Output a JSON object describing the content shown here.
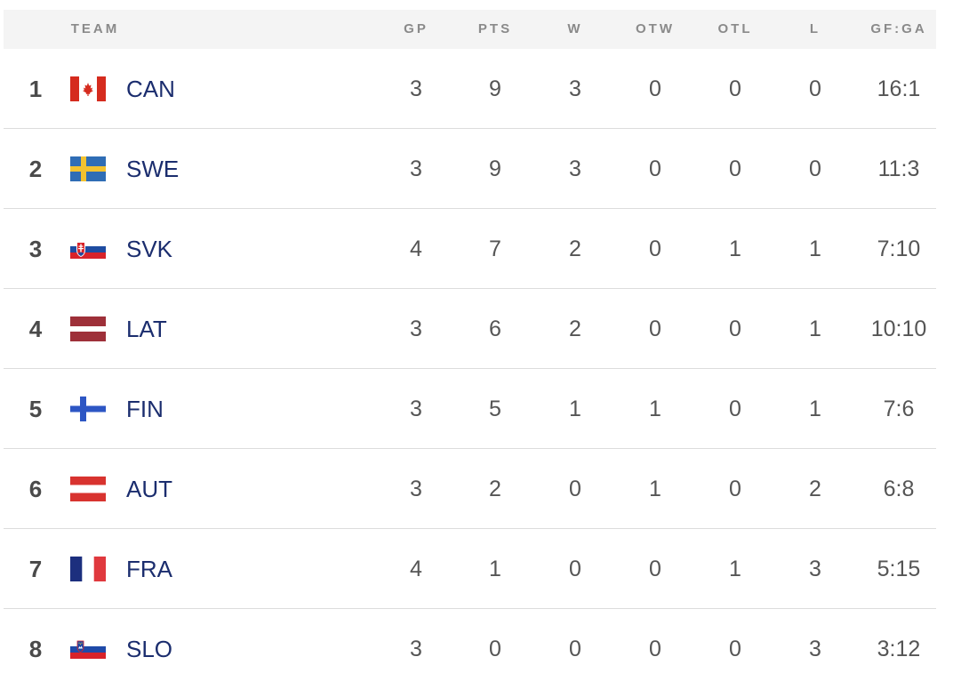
{
  "header": {
    "team": "TEAM",
    "gp": "GP",
    "pts": "PTS",
    "w": "W",
    "otw": "OTW",
    "otl": "OTL",
    "l": "L",
    "gfga": "GF:GA"
  },
  "rows": [
    {
      "rank": "1",
      "team": "CAN",
      "flag": "canada-flag",
      "gp": "3",
      "pts": "9",
      "w": "3",
      "otw": "0",
      "otl": "0",
      "l": "0",
      "gfga": "16:1"
    },
    {
      "rank": "2",
      "team": "SWE",
      "flag": "sweden-flag",
      "gp": "3",
      "pts": "9",
      "w": "3",
      "otw": "0",
      "otl": "0",
      "l": "0",
      "gfga": "11:3"
    },
    {
      "rank": "3",
      "team": "SVK",
      "flag": "slovakia-flag",
      "gp": "4",
      "pts": "7",
      "w": "2",
      "otw": "0",
      "otl": "1",
      "l": "1",
      "gfga": "7:10"
    },
    {
      "rank": "4",
      "team": "LAT",
      "flag": "latvia-flag",
      "gp": "3",
      "pts": "6",
      "w": "2",
      "otw": "0",
      "otl": "0",
      "l": "1",
      "gfga": "10:10"
    },
    {
      "rank": "5",
      "team": "FIN",
      "flag": "finland-flag",
      "gp": "3",
      "pts": "5",
      "w": "1",
      "otw": "1",
      "otl": "0",
      "l": "1",
      "gfga": "7:6"
    },
    {
      "rank": "6",
      "team": "AUT",
      "flag": "austria-flag",
      "gp": "3",
      "pts": "2",
      "w": "0",
      "otw": "1",
      "otl": "0",
      "l": "2",
      "gfga": "6:8"
    },
    {
      "rank": "7",
      "team": "FRA",
      "flag": "france-flag",
      "gp": "4",
      "pts": "1",
      "w": "0",
      "otw": "0",
      "otl": "1",
      "l": "3",
      "gfga": "5:15"
    },
    {
      "rank": "8",
      "team": "SLO",
      "flag": "slovenia-flag",
      "gp": "3",
      "pts": "0",
      "w": "0",
      "otw": "0",
      "otl": "0",
      "l": "3",
      "gfga": "3:12"
    }
  ],
  "colors": {
    "team_text": "#1b2d6e",
    "header_bg": "#f4f4f4",
    "header_text": "#8a8a8a",
    "rank_text": "#4a4a4a",
    "value_text": "#555555"
  }
}
